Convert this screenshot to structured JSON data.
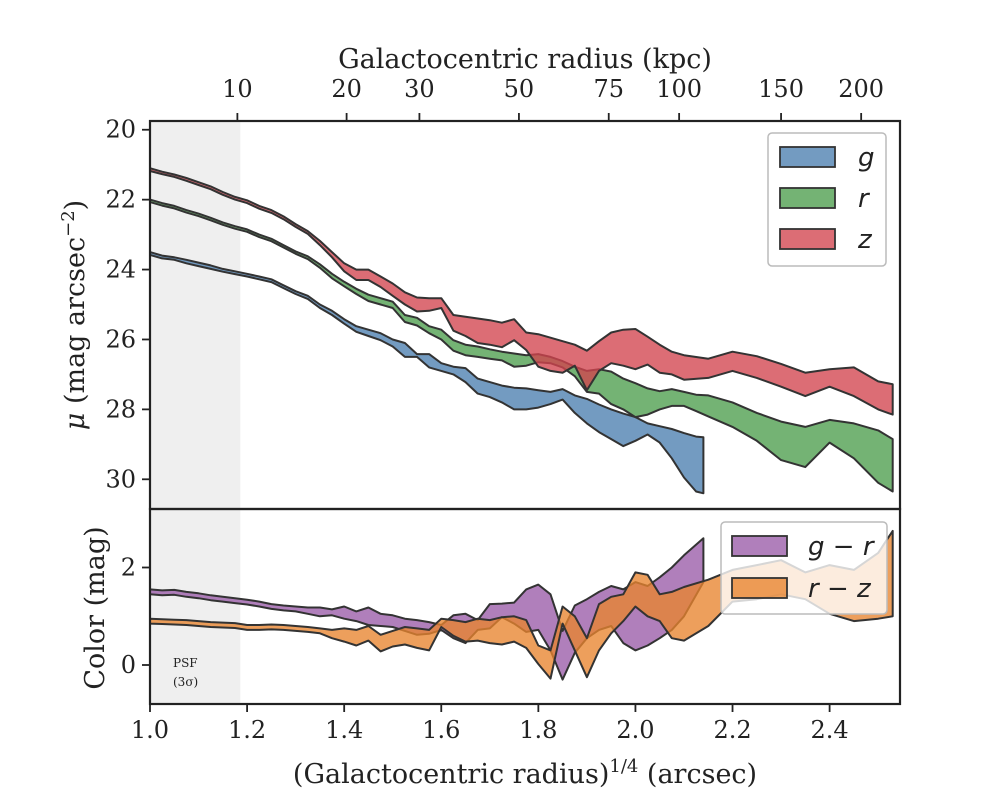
{
  "colors": {
    "g": "#4c7fb0",
    "r": "#4d9e4d",
    "z": "#d2444e",
    "g_r": "#9a5ba8",
    "r_z": "#e8842e",
    "psf_shade": "#efefef",
    "band_edge": "#333333"
  },
  "psf": {
    "line1": "PSF",
    "line2": "(3σ)",
    "x_end": 1.186
  },
  "chart_data": [
    {
      "type": "area",
      "panel": "surface-brightness",
      "xlabel": "(Galactocentric radius)^{1/4} (arcsec)",
      "ylabel": "μ (mag arcsec⁻²)",
      "top_axis_title": "Galactocentric radius (kpc)",
      "top_ticks": [
        {
          "label": "10",
          "x": 1.18
        },
        {
          "label": "20",
          "x": 1.405
        },
        {
          "label": "30",
          "x": 1.555
        },
        {
          "label": "50",
          "x": 1.76
        },
        {
          "label": "75",
          "x": 1.945
        },
        {
          "label": "100",
          "x": 2.09
        },
        {
          "label": "150",
          "x": 2.3
        },
        {
          "label": "200",
          "x": 2.465
        }
      ],
      "xlim": [
        1.0,
        2.545
      ],
      "ylim": [
        30.85,
        19.75
      ],
      "y_inverted": true,
      "yticks": [
        20,
        22,
        24,
        26,
        28,
        30
      ],
      "legend": {
        "placement": "top-right",
        "entries": [
          "g",
          "r",
          "z"
        ]
      },
      "series": [
        {
          "name": "g",
          "x": [
            1.0,
            1.025,
            1.05,
            1.075,
            1.1,
            1.125,
            1.15,
            1.175,
            1.2,
            1.225,
            1.25,
            1.275,
            1.3,
            1.325,
            1.35,
            1.375,
            1.4,
            1.425,
            1.45,
            1.475,
            1.5,
            1.525,
            1.55,
            1.575,
            1.6,
            1.625,
            1.65,
            1.675,
            1.7,
            1.725,
            1.75,
            1.775,
            1.8,
            1.825,
            1.85,
            1.875,
            1.9,
            1.925,
            1.95,
            1.975,
            2.0,
            2.025,
            2.05,
            2.075,
            2.1,
            2.125,
            2.14
          ],
          "lower": [
            23.5,
            23.6,
            23.65,
            23.72,
            23.8,
            23.88,
            23.98,
            24.05,
            24.12,
            24.2,
            24.28,
            24.45,
            24.62,
            24.75,
            25.0,
            25.18,
            25.42,
            25.62,
            25.72,
            25.82,
            26.0,
            26.1,
            26.42,
            26.42,
            26.68,
            26.78,
            26.82,
            27.12,
            27.22,
            27.32,
            27.38,
            27.4,
            27.45,
            27.5,
            27.42,
            27.6,
            27.7,
            27.86,
            28.0,
            28.12,
            28.22,
            28.4,
            28.48,
            28.56,
            28.68,
            28.78,
            28.8
          ],
          "upper": [
            23.58,
            23.68,
            23.72,
            23.82,
            23.9,
            23.98,
            24.06,
            24.13,
            24.2,
            24.28,
            24.36,
            24.53,
            24.7,
            24.84,
            25.1,
            25.3,
            25.55,
            25.78,
            25.9,
            26.02,
            26.2,
            26.5,
            26.5,
            26.8,
            26.9,
            27.0,
            27.22,
            27.55,
            27.65,
            27.8,
            28.0,
            28.0,
            27.95,
            27.85,
            27.72,
            28.1,
            28.4,
            28.65,
            28.85,
            29.05,
            28.9,
            28.72,
            28.95,
            29.4,
            29.95,
            30.35,
            30.4
          ]
        },
        {
          "name": "r",
          "x": [
            1.0,
            1.025,
            1.05,
            1.075,
            1.1,
            1.125,
            1.15,
            1.175,
            1.2,
            1.225,
            1.25,
            1.275,
            1.3,
            1.325,
            1.35,
            1.375,
            1.4,
            1.425,
            1.45,
            1.475,
            1.5,
            1.525,
            1.55,
            1.575,
            1.6,
            1.625,
            1.65,
            1.675,
            1.7,
            1.725,
            1.75,
            1.775,
            1.8,
            1.825,
            1.85,
            1.875,
            1.9,
            1.925,
            1.95,
            1.975,
            2.0,
            2.025,
            2.05,
            2.075,
            2.1,
            2.125,
            2.15,
            2.2,
            2.25,
            2.3,
            2.35,
            2.4,
            2.45,
            2.5,
            2.53
          ],
          "lower": [
            22.0,
            22.1,
            22.18,
            22.3,
            22.4,
            22.52,
            22.65,
            22.76,
            22.85,
            23.0,
            23.12,
            23.3,
            23.48,
            23.62,
            23.85,
            24.12,
            24.35,
            24.55,
            24.72,
            24.82,
            24.92,
            25.3,
            25.38,
            25.62,
            25.72,
            26.02,
            26.15,
            26.2,
            26.28,
            26.35,
            26.4,
            26.45,
            26.42,
            26.5,
            26.62,
            26.78,
            26.9,
            26.85,
            26.92,
            27.12,
            27.25,
            27.4,
            27.48,
            27.42,
            27.5,
            27.58,
            27.6,
            27.8,
            28.1,
            28.35,
            28.5,
            28.3,
            28.4,
            28.6,
            28.85
          ],
          "upper": [
            22.07,
            22.17,
            22.25,
            22.37,
            22.47,
            22.59,
            22.72,
            22.83,
            22.92,
            23.07,
            23.19,
            23.37,
            23.55,
            23.7,
            23.95,
            24.25,
            24.48,
            24.7,
            24.9,
            25.0,
            25.1,
            25.5,
            25.6,
            25.82,
            26.0,
            26.32,
            26.45,
            26.5,
            26.55,
            26.6,
            26.78,
            26.75,
            26.65,
            26.68,
            26.8,
            27.05,
            27.5,
            27.55,
            27.85,
            28.0,
            28.22,
            28.15,
            28.0,
            27.9,
            27.9,
            28.05,
            28.2,
            28.5,
            28.9,
            29.45,
            29.65,
            28.95,
            29.4,
            30.1,
            30.35
          ]
        },
        {
          "name": "z",
          "x": [
            1.0,
            1.025,
            1.05,
            1.075,
            1.1,
            1.125,
            1.15,
            1.175,
            1.2,
            1.225,
            1.25,
            1.275,
            1.3,
            1.325,
            1.35,
            1.375,
            1.4,
            1.425,
            1.45,
            1.475,
            1.5,
            1.525,
            1.55,
            1.575,
            1.6,
            1.625,
            1.65,
            1.675,
            1.7,
            1.725,
            1.75,
            1.775,
            1.8,
            1.825,
            1.85,
            1.875,
            1.9,
            1.925,
            1.95,
            1.975,
            2.0,
            2.025,
            2.05,
            2.075,
            2.1,
            2.15,
            2.2,
            2.25,
            2.3,
            2.35,
            2.4,
            2.45,
            2.5,
            2.53
          ],
          "lower": [
            21.1,
            21.2,
            21.28,
            21.38,
            21.5,
            21.62,
            21.78,
            21.92,
            22.02,
            22.18,
            22.3,
            22.48,
            22.7,
            22.9,
            23.18,
            23.5,
            23.82,
            24.0,
            24.0,
            24.2,
            24.4,
            24.65,
            24.8,
            24.82,
            24.82,
            25.3,
            25.35,
            25.4,
            25.45,
            25.52,
            25.42,
            25.8,
            25.85,
            25.95,
            26.05,
            26.15,
            26.32,
            26.05,
            25.8,
            25.72,
            25.7,
            25.92,
            26.15,
            26.35,
            26.45,
            26.55,
            26.35,
            26.48,
            26.7,
            26.95,
            26.85,
            26.8,
            27.2,
            27.28
          ],
          "upper": [
            21.18,
            21.27,
            21.35,
            21.46,
            21.58,
            21.7,
            21.86,
            22.0,
            22.1,
            22.26,
            22.38,
            22.56,
            22.78,
            22.98,
            23.3,
            23.65,
            24.05,
            24.3,
            24.3,
            24.5,
            24.75,
            25.0,
            25.2,
            25.18,
            25.1,
            25.75,
            25.9,
            26.1,
            26.15,
            26.22,
            26.02,
            26.3,
            26.78,
            26.9,
            26.95,
            26.75,
            27.45,
            26.9,
            26.68,
            26.75,
            26.85,
            26.72,
            26.95,
            27.0,
            27.15,
            27.1,
            26.9,
            27.1,
            27.35,
            27.62,
            27.35,
            27.62,
            28.0,
            28.15
          ]
        }
      ]
    },
    {
      "type": "area",
      "panel": "color",
      "xlabel": "(Galactocentric radius)^{1/4} (arcsec)",
      "ylabel": "Color (mag)",
      "xlim": [
        1.0,
        2.545
      ],
      "ylim": [
        -0.8,
        3.2
      ],
      "xticks": [
        1.0,
        1.2,
        1.4,
        1.6,
        1.8,
        2.0,
        2.2,
        2.4
      ],
      "yticks": [
        0,
        2
      ],
      "legend": {
        "placement": "top-right",
        "entries": [
          "g - r",
          "r - z"
        ]
      },
      "series": [
        {
          "name": "g − r",
          "x": [
            1.0,
            1.025,
            1.05,
            1.075,
            1.1,
            1.125,
            1.15,
            1.175,
            1.2,
            1.225,
            1.25,
            1.275,
            1.3,
            1.325,
            1.35,
            1.375,
            1.4,
            1.425,
            1.45,
            1.475,
            1.5,
            1.525,
            1.55,
            1.575,
            1.6,
            1.625,
            1.65,
            1.675,
            1.7,
            1.725,
            1.75,
            1.775,
            1.8,
            1.825,
            1.85,
            1.875,
            1.9,
            1.925,
            1.95,
            1.975,
            2.0,
            2.025,
            2.05,
            2.075,
            2.1,
            2.14
          ],
          "lower": [
            1.45,
            1.43,
            1.44,
            1.4,
            1.37,
            1.33,
            1.3,
            1.27,
            1.24,
            1.2,
            1.15,
            1.12,
            1.1,
            1.05,
            1.0,
            1.02,
            0.95,
            0.9,
            0.82,
            0.8,
            0.78,
            0.7,
            0.62,
            0.64,
            0.72,
            0.55,
            0.45,
            0.72,
            0.75,
            0.98,
            0.85,
            0.68,
            0.72,
            0.3,
            -0.3,
            0.25,
            0.55,
            0.72,
            0.8,
            0.45,
            0.3,
            0.4,
            0.55,
            0.72,
            1.0,
            1.7
          ],
          "upper": [
            1.55,
            1.53,
            1.54,
            1.5,
            1.47,
            1.43,
            1.4,
            1.37,
            1.34,
            1.3,
            1.25,
            1.22,
            1.2,
            1.18,
            1.18,
            1.14,
            1.2,
            1.1,
            1.18,
            1.05,
            1.02,
            0.95,
            0.92,
            0.88,
            0.82,
            1.02,
            1.05,
            0.92,
            1.25,
            1.26,
            1.28,
            1.55,
            1.65,
            1.45,
            0.7,
            1.22,
            1.35,
            1.5,
            1.62,
            1.55,
            1.7,
            1.62,
            1.8,
            2.0,
            2.25,
            2.6
          ]
        },
        {
          "name": "r − z",
          "x": [
            1.0,
            1.025,
            1.05,
            1.075,
            1.1,
            1.125,
            1.15,
            1.175,
            1.2,
            1.225,
            1.25,
            1.275,
            1.3,
            1.325,
            1.35,
            1.375,
            1.4,
            1.425,
            1.45,
            1.475,
            1.5,
            1.525,
            1.55,
            1.575,
            1.6,
            1.625,
            1.65,
            1.675,
            1.7,
            1.725,
            1.75,
            1.775,
            1.8,
            1.825,
            1.85,
            1.875,
            1.9,
            1.925,
            1.95,
            1.975,
            2.0,
            2.025,
            2.05,
            2.075,
            2.1,
            2.15,
            2.2,
            2.25,
            2.3,
            2.35,
            2.4,
            2.45,
            2.5,
            2.53
          ],
          "lower": [
            0.85,
            0.84,
            0.83,
            0.82,
            0.8,
            0.78,
            0.77,
            0.76,
            0.72,
            0.72,
            0.73,
            0.72,
            0.7,
            0.68,
            0.65,
            0.55,
            0.48,
            0.4,
            0.5,
            0.28,
            0.38,
            0.42,
            0.35,
            0.3,
            0.78,
            0.6,
            0.48,
            0.5,
            0.45,
            0.42,
            0.48,
            0.35,
            0.02,
            -0.28,
            0.85,
            0.3,
            -0.25,
            0.3,
            0.65,
            0.9,
            1.2,
            1.0,
            0.9,
            0.55,
            0.5,
            0.8,
            1.3,
            1.35,
            1.45,
            1.35,
            1.05,
            0.9,
            0.95,
            1.0
          ],
          "upper": [
            0.95,
            0.94,
            0.93,
            0.92,
            0.9,
            0.88,
            0.87,
            0.86,
            0.82,
            0.82,
            0.83,
            0.82,
            0.8,
            0.78,
            0.75,
            0.72,
            0.75,
            0.72,
            0.8,
            0.62,
            0.7,
            0.78,
            0.75,
            0.72,
            0.95,
            0.92,
            0.88,
            0.95,
            0.92,
            0.98,
            1.0,
            0.92,
            0.4,
            0.3,
            1.2,
            1.0,
            0.55,
            1.25,
            1.4,
            1.45,
            1.9,
            1.85,
            1.45,
            1.5,
            1.6,
            1.75,
            1.95,
            2.05,
            2.15,
            1.9,
            2.05,
            1.95,
            2.3,
            2.75
          ]
        }
      ]
    }
  ]
}
